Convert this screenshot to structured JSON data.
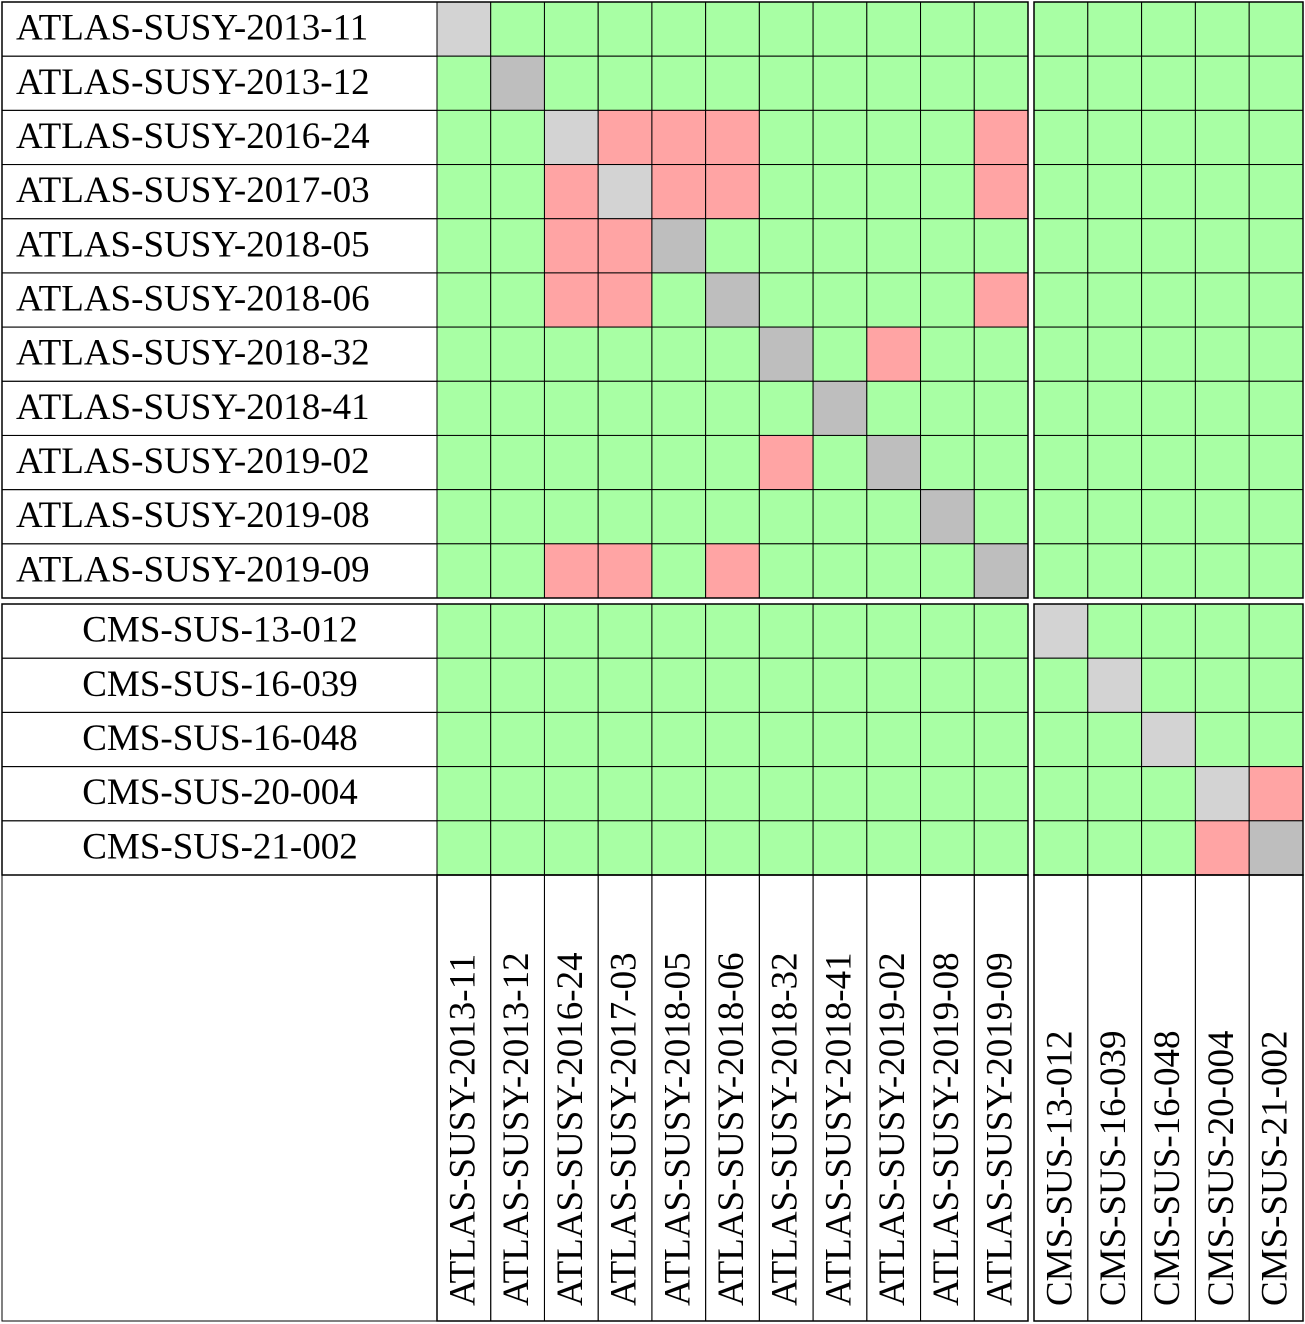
{
  "row_labels": [
    "ATLAS-SUSY-2013-11",
    "ATLAS-SUSY-2013-12",
    "ATLAS-SUSY-2016-24",
    "ATLAS-SUSY-2017-03",
    "ATLAS-SUSY-2018-05",
    "ATLAS-SUSY-2018-06",
    "ATLAS-SUSY-2018-32",
    "ATLAS-SUSY-2018-41",
    "ATLAS-SUSY-2019-02",
    "ATLAS-SUSY-2019-08",
    "ATLAS-SUSY-2019-09",
    "CMS-SUS-13-012",
    "CMS-SUS-16-039",
    "CMS-SUS-16-048",
    "CMS-SUS-20-004",
    "CMS-SUS-21-002"
  ],
  "column_labels": [
    "ATLAS-SUSY-2013-11",
    "ATLAS-SUSY-2013-12",
    "ATLAS-SUSY-2016-24",
    "ATLAS-SUSY-2017-03",
    "ATLAS-SUSY-2018-05",
    "ATLAS-SUSY-2018-06",
    "ATLAS-SUSY-2018-32",
    "ATLAS-SUSY-2018-41",
    "ATLAS-SUSY-2019-02",
    "ATLAS-SUSY-2019-08",
    "ATLAS-SUSY-2019-09",
    "CMS-SUS-13-012",
    "CMS-SUS-16-039",
    "CMS-SUS-16-048",
    "CMS-SUS-20-004",
    "CMS-SUS-21-002"
  ],
  "cells": [
    [
      "#d3d3d3",
      "#a8ffa4",
      "#a8ffa4",
      "#a8ffa4",
      "#a8ffa4",
      "#a8ffa4",
      "#a8ffa4",
      "#a8ffa4",
      "#a8ffa4",
      "#a8ffa4",
      "#a8ffa4",
      "#a8ffa4",
      "#a8ffa4",
      "#a8ffa4",
      "#a8ffa4",
      "#a8ffa4"
    ],
    [
      "#a8ffa4",
      "#bebebe",
      "#a8ffa4",
      "#a8ffa4",
      "#a8ffa4",
      "#a8ffa4",
      "#a8ffa4",
      "#a8ffa4",
      "#a8ffa4",
      "#a8ffa4",
      "#a8ffa4",
      "#a8ffa4",
      "#a8ffa4",
      "#a8ffa4",
      "#a8ffa4",
      "#a8ffa4"
    ],
    [
      "#a8ffa4",
      "#a8ffa4",
      "#d3d3d3",
      "#ffa4a4",
      "#ffa4a4",
      "#ffa4a4",
      "#a8ffa4",
      "#a8ffa4",
      "#a8ffa4",
      "#a8ffa4",
      "#ffa4a4",
      "#a8ffa4",
      "#a8ffa4",
      "#a8ffa4",
      "#a8ffa4",
      "#a8ffa4"
    ],
    [
      "#a8ffa4",
      "#a8ffa4",
      "#ffa4a4",
      "#d3d3d3",
      "#ffa4a4",
      "#ffa4a4",
      "#a8ffa4",
      "#a8ffa4",
      "#a8ffa4",
      "#a8ffa4",
      "#ffa4a4",
      "#a8ffa4",
      "#a8ffa4",
      "#a8ffa4",
      "#a8ffa4",
      "#a8ffa4"
    ],
    [
      "#a8ffa4",
      "#a8ffa4",
      "#ffa4a4",
      "#ffa4a4",
      "#bebebe",
      "#a8ffa4",
      "#a8ffa4",
      "#a8ffa4",
      "#a8ffa4",
      "#a8ffa4",
      "#a8ffa4",
      "#a8ffa4",
      "#a8ffa4",
      "#a8ffa4",
      "#a8ffa4",
      "#a8ffa4"
    ],
    [
      "#a8ffa4",
      "#a8ffa4",
      "#ffa4a4",
      "#ffa4a4",
      "#a8ffa4",
      "#bebebe",
      "#a8ffa4",
      "#a8ffa4",
      "#a8ffa4",
      "#a8ffa4",
      "#ffa4a4",
      "#a8ffa4",
      "#a8ffa4",
      "#a8ffa4",
      "#a8ffa4",
      "#a8ffa4"
    ],
    [
      "#a8ffa4",
      "#a8ffa4",
      "#a8ffa4",
      "#a8ffa4",
      "#a8ffa4",
      "#a8ffa4",
      "#bebebe",
      "#a8ffa4",
      "#ffa4a4",
      "#a8ffa4",
      "#a8ffa4",
      "#a8ffa4",
      "#a8ffa4",
      "#a8ffa4",
      "#a8ffa4",
      "#a8ffa4"
    ],
    [
      "#a8ffa4",
      "#a8ffa4",
      "#a8ffa4",
      "#a8ffa4",
      "#a8ffa4",
      "#a8ffa4",
      "#a8ffa4",
      "#bebebe",
      "#a8ffa4",
      "#a8ffa4",
      "#a8ffa4",
      "#a8ffa4",
      "#a8ffa4",
      "#a8ffa4",
      "#a8ffa4",
      "#a8ffa4"
    ],
    [
      "#a8ffa4",
      "#a8ffa4",
      "#a8ffa4",
      "#a8ffa4",
      "#a8ffa4",
      "#a8ffa4",
      "#ffa4a4",
      "#a8ffa4",
      "#bebebe",
      "#a8ffa4",
      "#a8ffa4",
      "#a8ffa4",
      "#a8ffa4",
      "#a8ffa4",
      "#a8ffa4",
      "#a8ffa4"
    ],
    [
      "#a8ffa4",
      "#a8ffa4",
      "#a8ffa4",
      "#a8ffa4",
      "#a8ffa4",
      "#a8ffa4",
      "#a8ffa4",
      "#a8ffa4",
      "#a8ffa4",
      "#bebebe",
      "#a8ffa4",
      "#a8ffa4",
      "#a8ffa4",
      "#a8ffa4",
      "#a8ffa4",
      "#a8ffa4"
    ],
    [
      "#a8ffa4",
      "#a8ffa4",
      "#ffa4a4",
      "#ffa4a4",
      "#a8ffa4",
      "#ffa4a4",
      "#a8ffa4",
      "#a8ffa4",
      "#a8ffa4",
      "#a8ffa4",
      "#bebebe",
      "#a8ffa4",
      "#a8ffa4",
      "#a8ffa4",
      "#a8ffa4",
      "#a8ffa4"
    ],
    [
      "#a8ffa4",
      "#a8ffa4",
      "#a8ffa4",
      "#a8ffa4",
      "#a8ffa4",
      "#a8ffa4",
      "#a8ffa4",
      "#a8ffa4",
      "#a8ffa4",
      "#a8ffa4",
      "#a8ffa4",
      "#d3d3d3",
      "#a8ffa4",
      "#a8ffa4",
      "#a8ffa4",
      "#a8ffa4"
    ],
    [
      "#a8ffa4",
      "#a8ffa4",
      "#a8ffa4",
      "#a8ffa4",
      "#a8ffa4",
      "#a8ffa4",
      "#a8ffa4",
      "#a8ffa4",
      "#a8ffa4",
      "#a8ffa4",
      "#a8ffa4",
      "#a8ffa4",
      "#d3d3d3",
      "#a8ffa4",
      "#a8ffa4",
      "#a8ffa4"
    ],
    [
      "#a8ffa4",
      "#a8ffa4",
      "#a8ffa4",
      "#a8ffa4",
      "#a8ffa4",
      "#a8ffa4",
      "#a8ffa4",
      "#a8ffa4",
      "#a8ffa4",
      "#a8ffa4",
      "#a8ffa4",
      "#a8ffa4",
      "#a8ffa4",
      "#d3d3d3",
      "#a8ffa4",
      "#a8ffa4"
    ],
    [
      "#a8ffa4",
      "#a8ffa4",
      "#a8ffa4",
      "#a8ffa4",
      "#a8ffa4",
      "#a8ffa4",
      "#a8ffa4",
      "#a8ffa4",
      "#a8ffa4",
      "#a8ffa4",
      "#a8ffa4",
      "#a8ffa4",
      "#a8ffa4",
      "#a8ffa4",
      "#d3d3d3",
      "#ffa4a4"
    ],
    [
      "#a8ffa4",
      "#a8ffa4",
      "#a8ffa4",
      "#a8ffa4",
      "#a8ffa4",
      "#a8ffa4",
      "#a8ffa4",
      "#a8ffa4",
      "#a8ffa4",
      "#a8ffa4",
      "#a8ffa4",
      "#a8ffa4",
      "#a8ffa4",
      "#a8ffa4",
      "#ffa4a4",
      "#bebebe"
    ]
  ]
}
